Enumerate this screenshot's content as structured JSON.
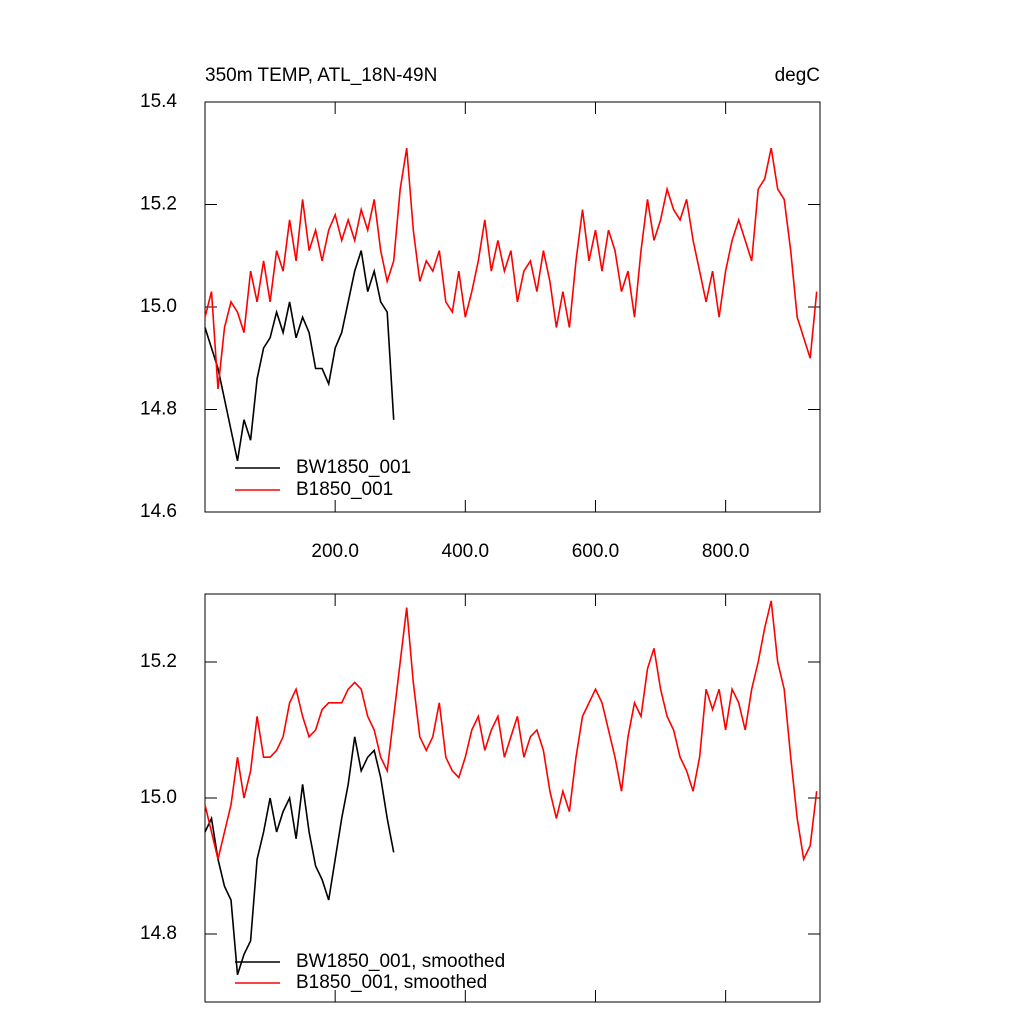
{
  "chart_data": [
    {
      "type": "line",
      "title": "350m TEMP, ATL_18N-49N",
      "unit_label": "degC",
      "xlim": [
        0,
        945
      ],
      "ylim": [
        14.6,
        15.4
      ],
      "xticks": [
        {
          "value": 200,
          "label": "200.0"
        },
        {
          "value": 400,
          "label": "400.0"
        },
        {
          "value": 600,
          "label": "600.0"
        },
        {
          "value": 800,
          "label": "800.0"
        }
      ],
      "show_xtick_labels": true,
      "yticks": [
        14.6,
        14.8,
        {
          "value": 15,
          "label": "15.0"
        },
        15.2,
        15.4
      ],
      "series": [
        {
          "name": "BW1850_001",
          "color": "#000000",
          "x": [
            0,
            10,
            20,
            30,
            40,
            50,
            60,
            70,
            80,
            90,
            100,
            110,
            120,
            130,
            140,
            150,
            160,
            170,
            180,
            190,
            200,
            210,
            220,
            230,
            240,
            250,
            260,
            270,
            280,
            290
          ],
          "values": [
            14.96,
            14.92,
            14.88,
            14.82,
            14.76,
            14.7,
            14.78,
            14.74,
            14.86,
            14.92,
            14.94,
            14.99,
            14.95,
            15.01,
            14.94,
            14.98,
            14.95,
            14.88,
            14.88,
            14.85,
            14.92,
            14.95,
            15.01,
            15.07,
            15.11,
            15.03,
            15.07,
            15.01,
            14.99,
            14.78
          ]
        },
        {
          "name": "B1850_001",
          "color": "#ff0000",
          "x": [
            0,
            10,
            20,
            30,
            40,
            50,
            60,
            70,
            80,
            90,
            100,
            110,
            120,
            130,
            140,
            150,
            160,
            170,
            180,
            190,
            200,
            210,
            220,
            230,
            240,
            250,
            260,
            270,
            280,
            290,
            300,
            310,
            320,
            330,
            340,
            350,
            360,
            370,
            380,
            390,
            400,
            410,
            420,
            430,
            440,
            450,
            460,
            470,
            480,
            490,
            500,
            510,
            520,
            530,
            540,
            550,
            560,
            570,
            580,
            590,
            600,
            610,
            620,
            630,
            640,
            650,
            660,
            670,
            680,
            690,
            700,
            710,
            720,
            730,
            740,
            750,
            760,
            770,
            780,
            790,
            800,
            810,
            820,
            830,
            840,
            850,
            860,
            870,
            880,
            890,
            900,
            910,
            920,
            930,
            940
          ],
          "values": [
            14.98,
            15.03,
            14.84,
            14.96,
            15.01,
            14.99,
            14.95,
            15.07,
            15.01,
            15.09,
            15.01,
            15.11,
            15.07,
            15.17,
            15.09,
            15.21,
            15.11,
            15.15,
            15.09,
            15.15,
            15.18,
            15.13,
            15.17,
            15.13,
            15.19,
            15.15,
            15.21,
            15.11,
            15.05,
            15.09,
            15.23,
            15.31,
            15.15,
            15.05,
            15.09,
            15.07,
            15.11,
            15.01,
            14.99,
            15.07,
            14.98,
            15.03,
            15.09,
            15.17,
            15.07,
            15.13,
            15.07,
            15.11,
            15.01,
            15.07,
            15.09,
            15.03,
            15.11,
            15.05,
            14.96,
            15.03,
            14.96,
            15.09,
            15.19,
            15.09,
            15.15,
            15.07,
            15.15,
            15.11,
            15.03,
            15.07,
            14.98,
            15.11,
            15.21,
            15.13,
            15.17,
            15.23,
            15.19,
            15.17,
            15.21,
            15.13,
            15.07,
            15.01,
            15.07,
            14.98,
            15.07,
            15.13,
            15.17,
            15.13,
            15.09,
            15.23,
            15.25,
            15.31,
            15.23,
            15.21,
            15.11,
            14.98,
            14.94,
            14.9,
            15.03
          ]
        }
      ]
    },
    {
      "type": "line",
      "xlim": [
        0,
        945
      ],
      "ylim": [
        14.7,
        15.3
      ],
      "xticks": [
        200,
        400,
        600,
        800
      ],
      "show_xtick_labels": false,
      "yticks": [
        14.8,
        {
          "value": 15,
          "label": "15.0"
        },
        15.2
      ],
      "series": [
        {
          "name": "BW1850_001, smoothed",
          "color": "#000000",
          "x": [
            0,
            10,
            20,
            30,
            40,
            50,
            60,
            70,
            80,
            90,
            100,
            110,
            120,
            130,
            140,
            150,
            160,
            170,
            180,
            190,
            200,
            210,
            220,
            230,
            240,
            250,
            260,
            270,
            280,
            290
          ],
          "values": [
            14.95,
            14.97,
            14.91,
            14.87,
            14.85,
            14.74,
            14.77,
            14.79,
            14.91,
            14.95,
            15.0,
            14.95,
            14.98,
            15.0,
            14.94,
            15.02,
            14.95,
            14.9,
            14.88,
            14.85,
            14.91,
            14.97,
            15.02,
            15.09,
            15.04,
            15.06,
            15.07,
            15.03,
            14.97,
            14.92
          ]
        },
        {
          "name": "B1850_001, smoothed",
          "color": "#ff0000",
          "x": [
            0,
            10,
            20,
            30,
            40,
            50,
            60,
            70,
            80,
            90,
            100,
            110,
            120,
            130,
            140,
            150,
            160,
            170,
            180,
            190,
            200,
            210,
            220,
            230,
            240,
            250,
            260,
            270,
            280,
            290,
            300,
            310,
            320,
            330,
            340,
            350,
            360,
            370,
            380,
            390,
            400,
            410,
            420,
            430,
            440,
            450,
            460,
            470,
            480,
            490,
            500,
            510,
            520,
            530,
            540,
            550,
            560,
            570,
            580,
            590,
            600,
            610,
            620,
            630,
            640,
            650,
            660,
            670,
            680,
            690,
            700,
            710,
            720,
            730,
            740,
            750,
            760,
            770,
            780,
            790,
            800,
            810,
            820,
            830,
            840,
            850,
            860,
            870,
            880,
            890,
            900,
            910,
            920,
            930,
            940
          ],
          "values": [
            14.99,
            14.95,
            14.91,
            14.95,
            14.99,
            15.06,
            15.0,
            15.04,
            15.12,
            15.06,
            15.06,
            15.07,
            15.09,
            15.14,
            15.16,
            15.12,
            15.09,
            15.1,
            15.13,
            15.14,
            15.14,
            15.14,
            15.16,
            15.17,
            15.16,
            15.12,
            15.1,
            15.06,
            15.04,
            15.12,
            15.2,
            15.28,
            15.17,
            15.09,
            15.07,
            15.09,
            15.14,
            15.06,
            15.04,
            15.03,
            15.06,
            15.1,
            15.12,
            15.07,
            15.1,
            15.12,
            15.06,
            15.09,
            15.12,
            15.06,
            15.09,
            15.1,
            15.07,
            15.01,
            14.97,
            15.01,
            14.98,
            15.06,
            15.12,
            15.14,
            15.16,
            15.14,
            15.1,
            15.06,
            15.01,
            15.09,
            15.14,
            15.12,
            15.19,
            15.22,
            15.16,
            15.12,
            15.1,
            15.06,
            15.04,
            15.01,
            15.06,
            15.16,
            15.13,
            15.16,
            15.1,
            15.16,
            15.14,
            15.1,
            15.16,
            15.2,
            15.25,
            15.29,
            15.2,
            15.16,
            15.06,
            14.97,
            14.91,
            14.93,
            15.01
          ]
        }
      ]
    }
  ]
}
